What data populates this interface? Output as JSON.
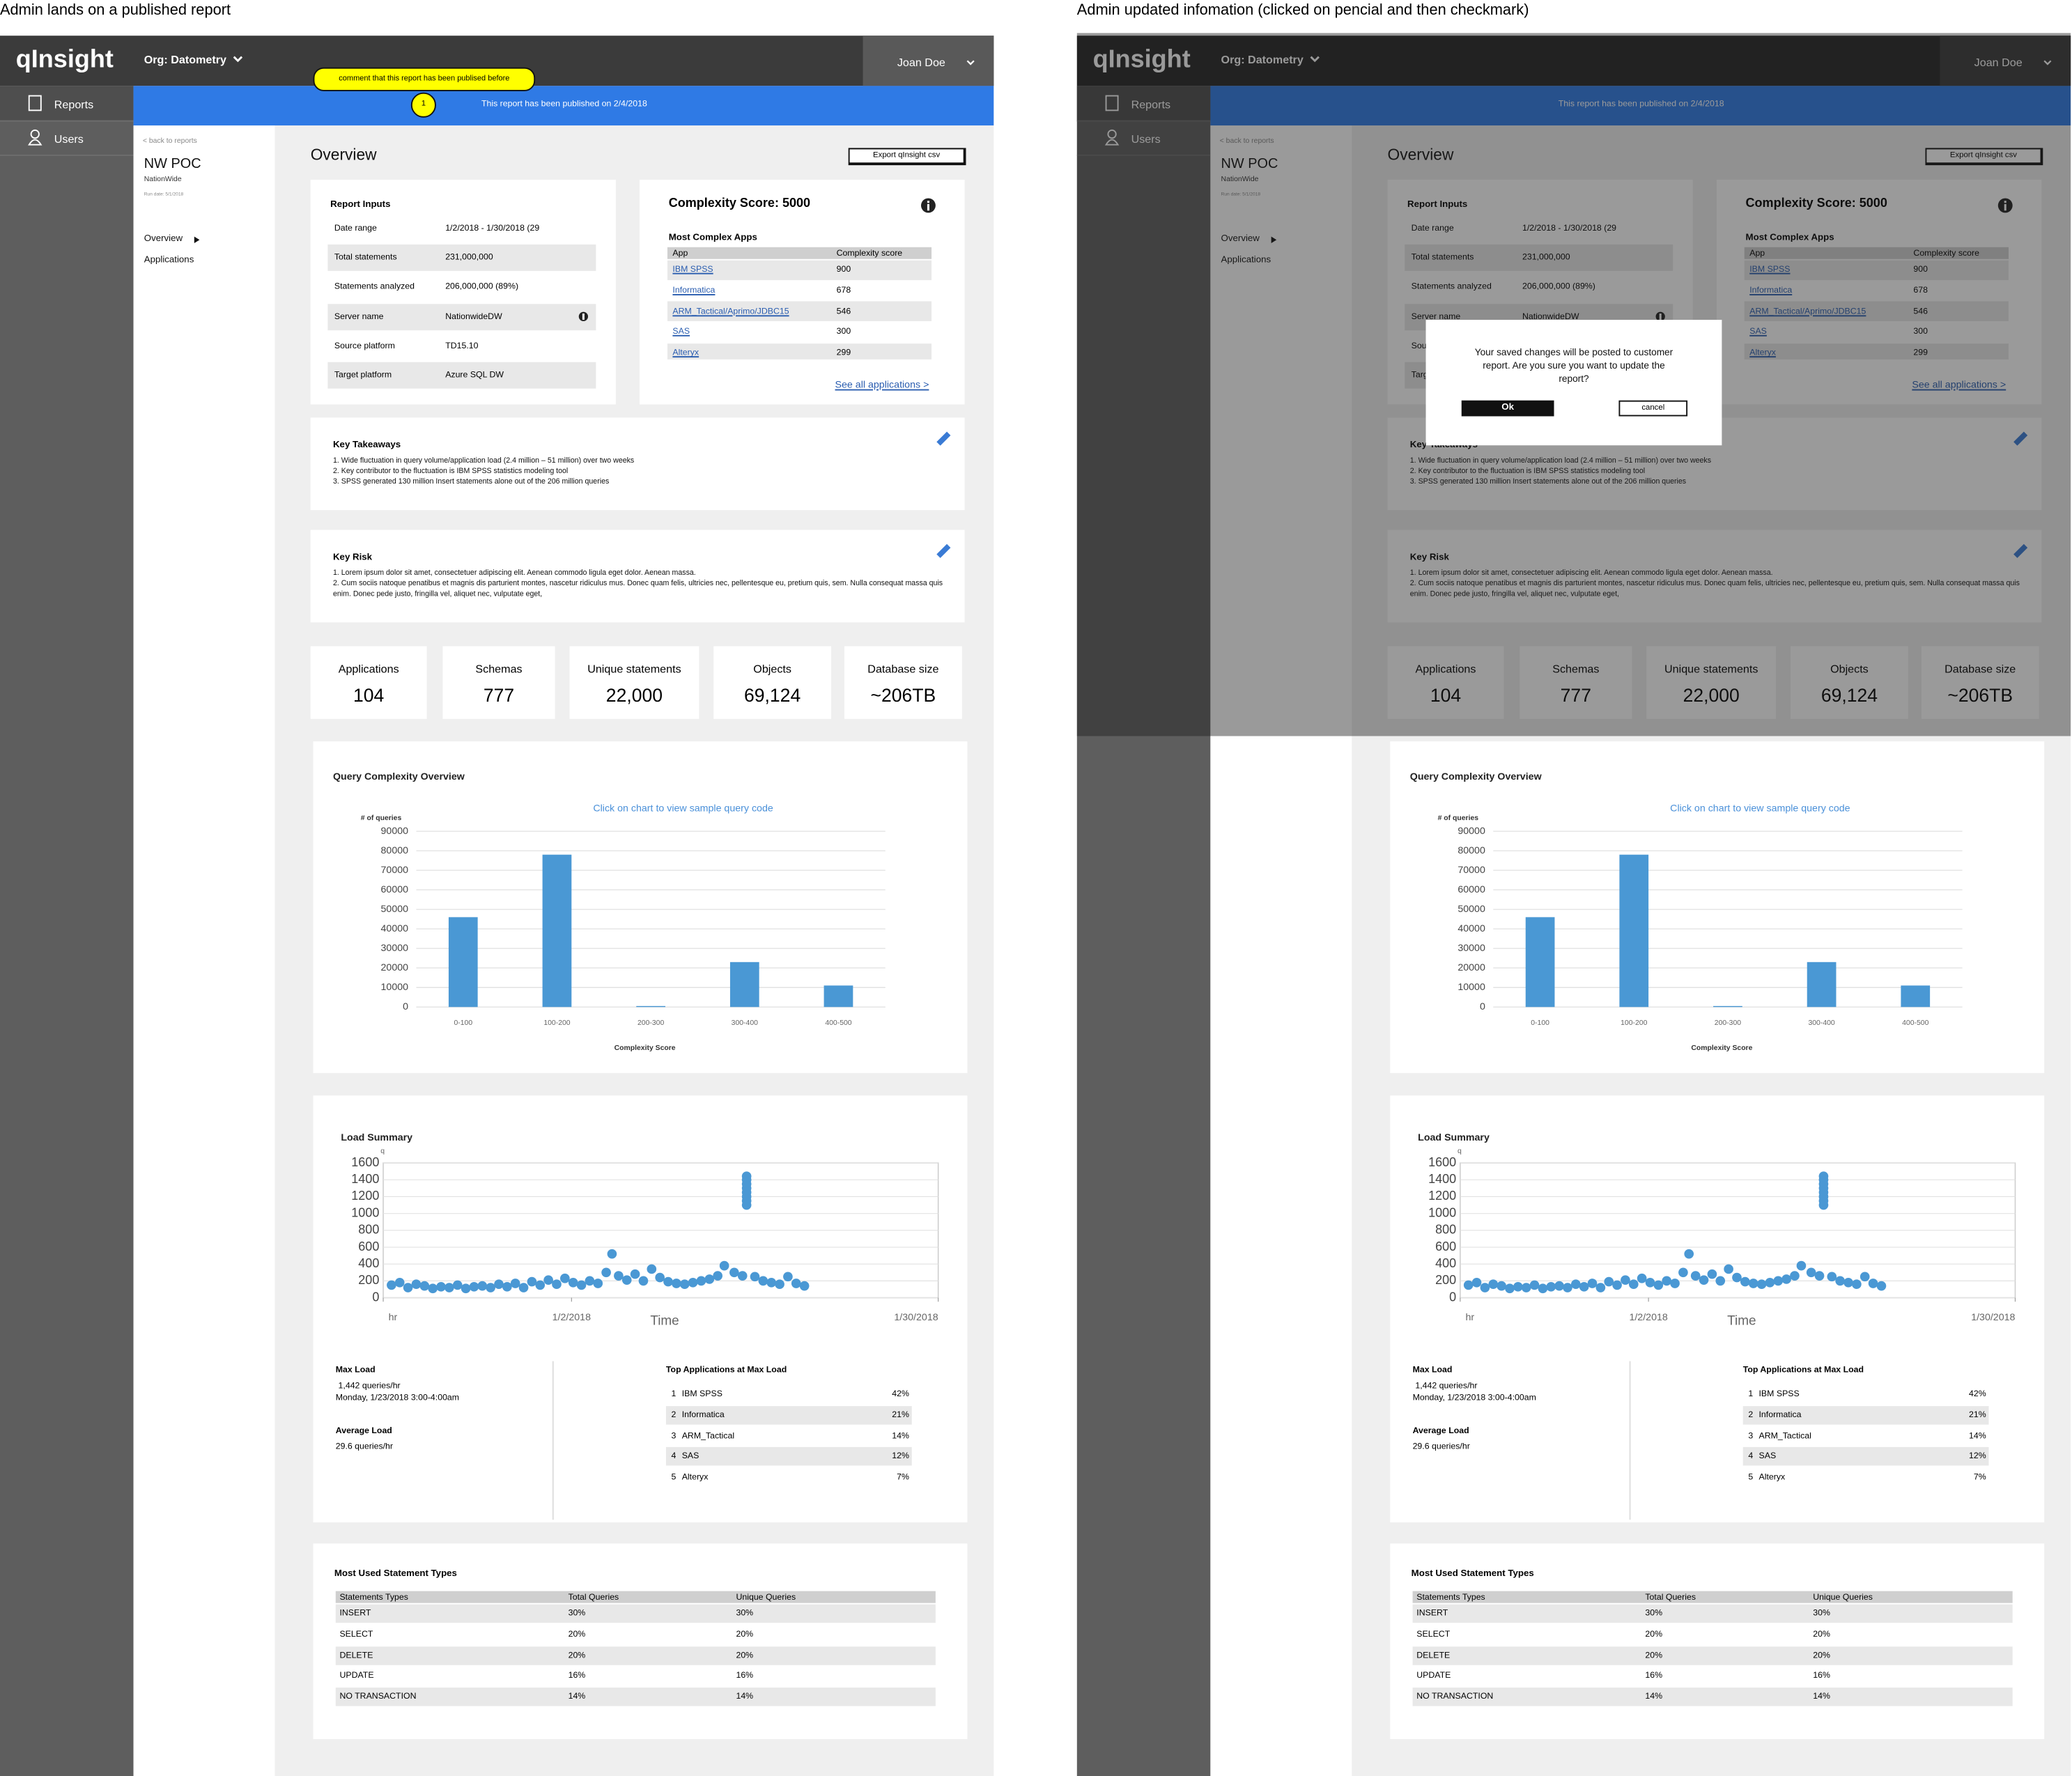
{
  "captions": {
    "left": "Admin lands on a published report",
    "right": "Admin updated infomation (clicked on pencial and then checkmark)"
  },
  "header": {
    "logo": "qInsight",
    "org": "Org: Datometry",
    "user": "Joan Doe"
  },
  "sidebar": {
    "items": [
      "Reports",
      "Users"
    ]
  },
  "banner": "This report has been published on 2/4/2018",
  "comment": {
    "marker": "1",
    "text": "comment that this report has been publised before"
  },
  "subnav": {
    "back": "< back to reports",
    "project": "NW POC",
    "client": "NationWide",
    "run_date": "Run date: 5/1/2018",
    "links": [
      "Overview",
      "Applications"
    ]
  },
  "overview": {
    "title": "Overview",
    "export": "Export qInsight csv"
  },
  "report_inputs": {
    "title": "Report Inputs",
    "rows": [
      [
        "Date range",
        "1/2/2018 - 1/30/2018 (29"
      ],
      [
        "Total statements",
        "231,000,000"
      ],
      [
        "Statements analyzed",
        "206,000,000 (89%)"
      ],
      [
        "Server name",
        "NationwideDW"
      ],
      [
        "Source platform",
        "TD15.10"
      ],
      [
        "Target platform",
        "Azure SQL DW"
      ]
    ]
  },
  "complexity": {
    "title": "Complexity Score: 5000",
    "subtitle": "Most Complex Apps",
    "columns": [
      "App",
      "Complexity score"
    ],
    "rows": [
      [
        "IBM SPSS",
        "900"
      ],
      [
        "Informatica",
        "678"
      ],
      [
        "ARM_Tactical/Aprimo/JDBC15",
        "546"
      ],
      [
        "SAS",
        "300"
      ],
      [
        "Alteryx",
        "299"
      ]
    ],
    "link": "See all applications >"
  },
  "takeaways": {
    "title": "Key Takeaways",
    "lines": [
      "1. Wide fluctuation in query volume/application load (2.4 million – 51 million) over two weeks",
      "2. Key contributor to the fluctuation is IBM SPSS statistics modeling tool",
      "3. SPSS generated 130 million Insert statements alone out of the 206 million queries"
    ]
  },
  "risk": {
    "title": "Key Risk",
    "lines": [
      "1. Lorem ipsum dolor sit amet, consectetuer adipiscing elit. Aenean commodo ligula eget dolor. Aenean massa.",
      "2. Cum sociis natoque penatibus et magnis dis parturient montes, nascetur ridiculus mus. Donec quam felis, ultricies nec, pellentesque eu, pretium quis, sem. Nulla consequat massa quis enim. Donec pede justo, fringilla vel, aliquet nec, vulputate eget,"
    ]
  },
  "stats": [
    {
      "label": "Applications",
      "value": "104"
    },
    {
      "label": "Schemas",
      "value": "777"
    },
    {
      "label": "Unique statements",
      "value": "22,000"
    },
    {
      "label": "Objects",
      "value": "69,124"
    },
    {
      "label": "Database size",
      "value": "~206TB"
    }
  ],
  "chart_data": [
    {
      "type": "bar",
      "title": "Query Complexity Overview",
      "subtitle": "Click on chart to view sample query code",
      "y_label": "# of queries",
      "x_label": "Complexity Score",
      "categories": [
        "0-100",
        "100-200",
        "200-300",
        "300-400",
        "400-500"
      ],
      "values": [
        46000,
        78000,
        500,
        23000,
        11000
      ],
      "color": "#4a98d4",
      "ylim": [
        0,
        90000
      ],
      "yticks": [
        0,
        10000,
        20000,
        30000,
        40000,
        50000,
        60000,
        70000,
        80000,
        90000
      ],
      "grid": true
    },
    {
      "type": "scatter",
      "title": "Load Summary",
      "y_label": "q",
      "x_label": "Time",
      "color": "#4a98d4",
      "xlim": [
        0,
        672
      ],
      "xticks": [
        {
          "value": 0,
          "label": "hr"
        },
        {
          "value": 228,
          "label": "1/2/2018"
        },
        {
          "value": 672,
          "label": "1/30/2018"
        }
      ],
      "ylim": [
        0,
        1600
      ],
      "yticks": [
        0,
        200,
        400,
        600,
        800,
        1000,
        1200,
        1400,
        1600
      ],
      "grid": true,
      "x": [
        10,
        20,
        30,
        40,
        50,
        60,
        70,
        80,
        90,
        100,
        110,
        120,
        130,
        140,
        150,
        160,
        170,
        180,
        190,
        200,
        210,
        220,
        230,
        240,
        250,
        260,
        270,
        277,
        285,
        295,
        305,
        315,
        325,
        335,
        345,
        355,
        365,
        375,
        385,
        395,
        405,
        413,
        425,
        435,
        440,
        440,
        440,
        440,
        440,
        440,
        440,
        440,
        450,
        460,
        470,
        480,
        490,
        500,
        510
      ],
      "values": [
        150,
        180,
        120,
        160,
        140,
        110,
        130,
        120,
        150,
        110,
        130,
        140,
        120,
        160,
        130,
        170,
        120,
        190,
        150,
        210,
        160,
        230,
        180,
        150,
        200,
        170,
        300,
        520,
        260,
        210,
        280,
        200,
        340,
        240,
        190,
        170,
        160,
        180,
        200,
        220,
        260,
        380,
        300,
        260,
        1100,
        1150,
        1200,
        1250,
        1300,
        1350,
        1400,
        1442,
        250,
        200,
        180,
        160,
        250,
        170,
        140
      ]
    }
  ],
  "load": {
    "max_title": "Max Load",
    "max_value": "1,442 queries/hr",
    "max_time": "Monday, 1/23/2018 3:00-4:00am",
    "avg_title": "Average Load",
    "avg_value": "29.6 queries/hr",
    "top_title": "Top Applications at Max Load",
    "top": [
      [
        "1",
        "IBM SPSS",
        "42%"
      ],
      [
        "2",
        "Informatica",
        "21%"
      ],
      [
        "3",
        "ARM_Tactical",
        "14%"
      ],
      [
        "4",
        "SAS",
        "12%"
      ],
      [
        "5",
        "Alteryx",
        "7%"
      ]
    ]
  },
  "statement_types": {
    "title": "Most Used Statement Types",
    "columns": [
      "Statements Types",
      "Total Queries",
      "Unique Queries"
    ],
    "rows": [
      [
        "INSERT",
        "30%",
        "30%"
      ],
      [
        "SELECT",
        "20%",
        "20%"
      ],
      [
        "DELETE",
        "20%",
        "20%"
      ],
      [
        "UPDATE",
        "16%",
        "16%"
      ],
      [
        "NO TRANSACTION",
        "14%",
        "14%"
      ]
    ]
  },
  "dialog": {
    "message": "Your saved changes will be posted to customer report. Are you sure you want to update the report?",
    "ok": "Ok",
    "cancel": "cancel"
  }
}
